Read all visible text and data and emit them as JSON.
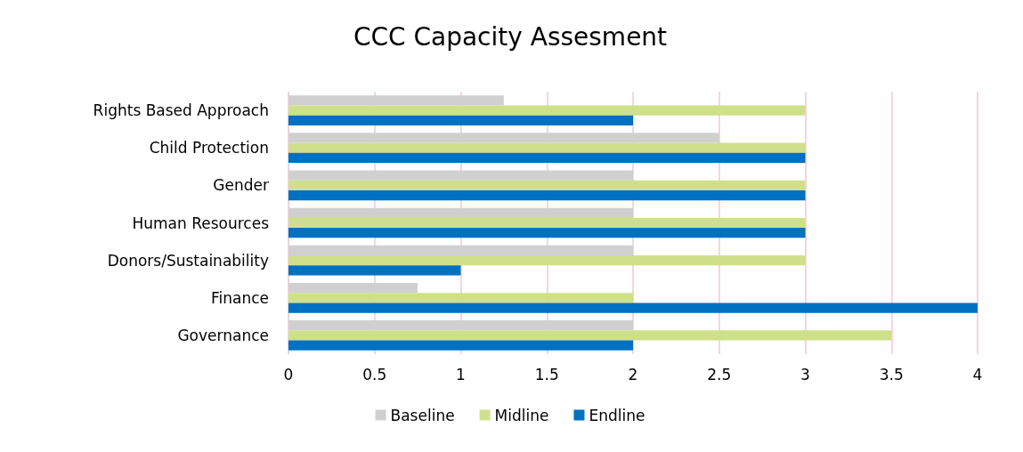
{
  "chart_data": {
    "type": "bar",
    "orientation": "horizontal",
    "title": "CCC Capacity Assesment",
    "categories": [
      "Rights Based Approach",
      "Child Protection",
      "Gender",
      "Human Resources",
      "Donors/Sustainability",
      "Finance",
      "Governance"
    ],
    "series": [
      {
        "name": "Baseline",
        "color": "#d0d0d0",
        "values": [
          1.25,
          2.5,
          2,
          2,
          2,
          0.75,
          2
        ]
      },
      {
        "name": "Midline",
        "color": "#cfe08a",
        "values": [
          3,
          3,
          3,
          3,
          3,
          2,
          3.5
        ]
      },
      {
        "name": "Endline",
        "color": "#0070c0",
        "values": [
          2,
          3,
          3,
          3,
          1,
          4,
          2
        ]
      }
    ],
    "xlim": [
      0,
      4
    ],
    "xticks": [
      0,
      0.5,
      1,
      1.5,
      2,
      2.5,
      3,
      3.5,
      4
    ],
    "grid": "x",
    "legend": "bottom"
  }
}
